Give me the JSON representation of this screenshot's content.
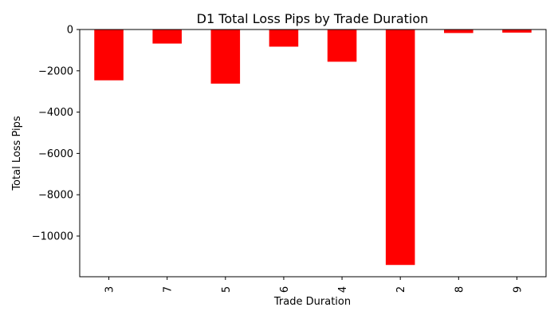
{
  "chart_data": {
    "type": "bar",
    "title": "D1 Total Loss Pips by Trade Duration",
    "xlabel": "Trade Duration",
    "ylabel": "Total Loss Pips",
    "categories": [
      "3",
      "7",
      "5",
      "6",
      "4",
      "2",
      "8",
      "9"
    ],
    "values": [
      -2460,
      -680,
      -2620,
      -830,
      -1560,
      -11400,
      -170,
      -150
    ],
    "ylim": [
      -11970,
      0
    ],
    "yticks": [
      0,
      -2000,
      -4000,
      -6000,
      -8000,
      -10000
    ],
    "ytick_labels": [
      "0",
      "−2000",
      "−4000",
      "−6000",
      "−8000",
      "−10000"
    ],
    "bar_color": "#ff0000",
    "grid": false,
    "legend": "none"
  }
}
